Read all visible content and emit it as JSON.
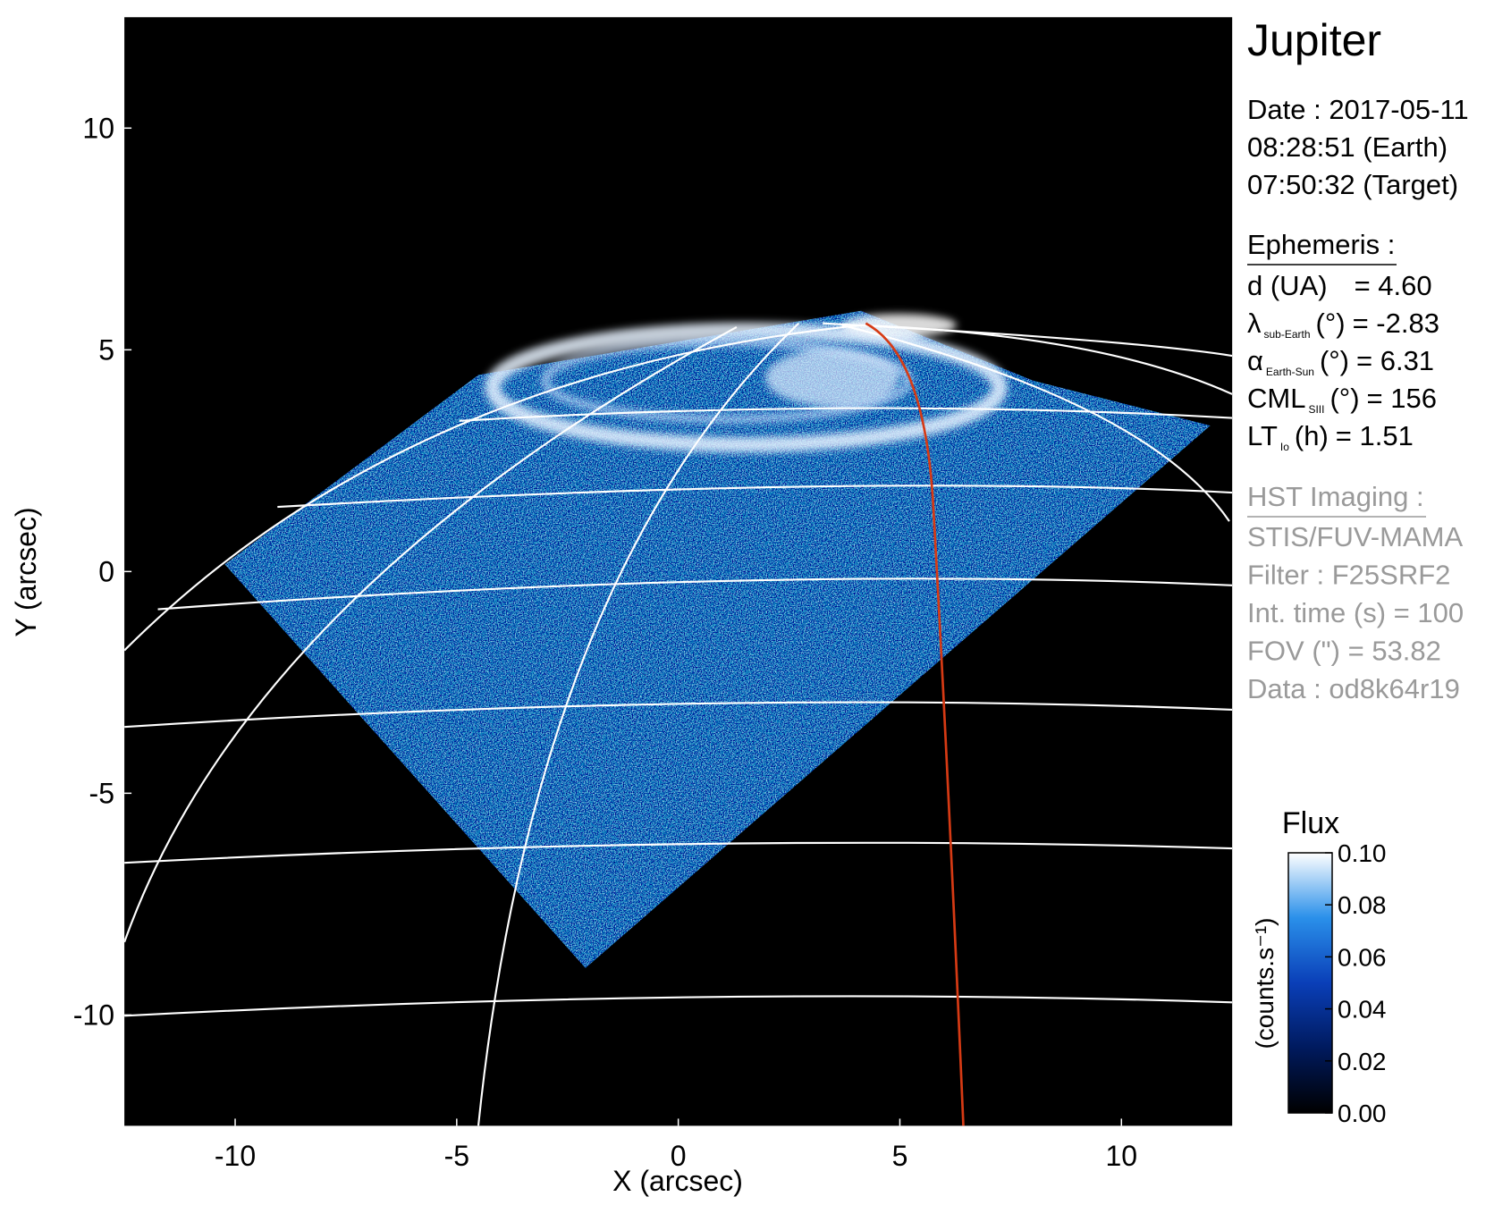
{
  "chart_data": {
    "type": "image",
    "title": "Jupiter",
    "date_lines": [
      "Date : 2017-05-11",
      "08:28:51 (Earth)",
      "07:50:32 (Target)"
    ],
    "ephemeris": {
      "heading": "Ephemeris :",
      "items": [
        {
          "label": "d (UA)",
          "value": "= 4.60"
        },
        {
          "symbol": "λ",
          "sub": "sub-Earth",
          "label": "(°)",
          "value": "= -2.83"
        },
        {
          "symbol": "α",
          "sub": "Earth-Sun",
          "label": "(°)",
          "value": "= 6.31"
        },
        {
          "symbol": "CML",
          "sub": "SIII",
          "label": "(°)",
          "value": "= 156"
        },
        {
          "symbol": "LT",
          "sub": "Io",
          "label": "(h)",
          "value": "= 1.51"
        }
      ]
    },
    "imaging": {
      "heading": "HST Imaging :",
      "lines": [
        "STIS/FUV-MAMA",
        "Filter : F25SRF2",
        "Int. time (s) = 100",
        "FOV (\") = 53.82",
        "Data : od8k64r19"
      ]
    },
    "x_label": "X (arcsec)",
    "y_label": "Y (arcsec)",
    "xlim": [
      -12.5,
      12.5
    ],
    "ylim": [
      -12.5,
      12.5
    ],
    "xticks": [
      -10,
      -5,
      0,
      5,
      10
    ],
    "yticks": [
      10,
      5,
      0,
      -5,
      -10
    ],
    "colorbar": {
      "title": "Flux",
      "label": "(counts.s⁻¹)",
      "clim": [
        0,
        0.1
      ],
      "ticks": [
        {
          "value": 0,
          "label": "0.00"
        },
        {
          "value": 0.02,
          "label": "0.02"
        },
        {
          "value": 0.04,
          "label": "0.04"
        },
        {
          "value": 0.06,
          "label": "0.06"
        },
        {
          "value": 0.08,
          "label": "0.08"
        },
        {
          "value": 0.1,
          "label": "0.10"
        }
      ],
      "colormap": [
        "#000000",
        "#001a5e",
        "#0a3fb8",
        "#2a90ea",
        "#ffffff"
      ]
    }
  }
}
